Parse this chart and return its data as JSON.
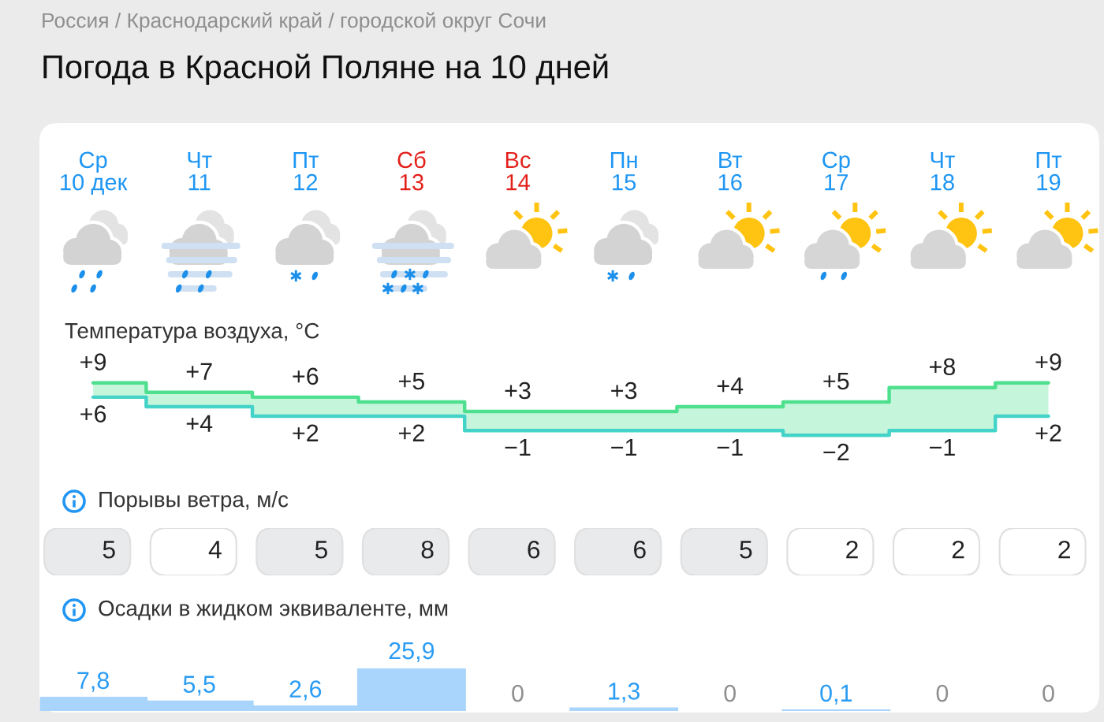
{
  "chart_data": [
    {
      "type": "step",
      "title": "Погода в Красной Поляне на 10 дней",
      "subtitle": "Температура воздуха, °C",
      "annotations": [
        "Россия / Краснодарский край / городской округ Сочи"
      ],
      "categories": [
        "Ср\n10 дек",
        "Чт\n11",
        "Пт\n12",
        "Сб\n13",
        "Вс\n14",
        "Пн\n15",
        "Вт\n16",
        "Ср\n17",
        "Чт\n18",
        "Пт\n19"
      ],
      "series": [
        {
          "color": "#4fe08f",
          "values": [
            9,
            7,
            6,
            5,
            3,
            3,
            4,
            5,
            8,
            9
          ],
          "value_labels": [
            "+9",
            "+7",
            "+6",
            "+5",
            "+3",
            "+3",
            "+4",
            "+5",
            "+8",
            "+9"
          ],
          "lower": [
            6,
            4,
            2,
            2,
            -1,
            -1,
            -1,
            -2,
            -1,
            2
          ],
          "upper": [
            9,
            7,
            6,
            5,
            3,
            3,
            4,
            5,
            8,
            9
          ]
        },
        {
          "color": "#44d3c8",
          "values": [
            6,
            4,
            2,
            2,
            -1,
            -1,
            -1,
            -2,
            -1,
            2
          ],
          "value_labels": [
            "+6",
            "+4",
            "+2",
            "+2",
            "−1",
            "−1",
            "−1",
            "−2",
            "−1",
            "+2"
          ]
        }
      ],
      "tick_labels": "x"
    },
    {
      "type": "other",
      "title": "Порывы ветра, м/с",
      "values": [
        5,
        4,
        5,
        8,
        6,
        6,
        5,
        2,
        2,
        2
      ],
      "colors": [
        "#e9eaec",
        "#ffffff",
        "#e9eaec",
        "#e9eaec",
        "#e9eaec",
        "#e9eaec",
        "#e9eaec",
        "#ffffff",
        "#ffffff",
        "#ffffff"
      ],
      "data_labels": true
    },
    {
      "type": "bar",
      "title": "Осадки в жидком эквиваленте, мм",
      "categories": [
        null,
        null,
        null,
        null,
        null,
        null,
        null,
        null,
        null,
        null
      ],
      "values": [
        7.8,
        5.5,
        2.6,
        25.9,
        0,
        1.3,
        0,
        0.1,
        0,
        0
      ],
      "value_labels": [
        "7,8",
        "5,5",
        "2,6",
        "25,9",
        "0",
        "1,3",
        "0",
        "0,1",
        "0",
        "0"
      ],
      "color": "#a9d4fb"
    }
  ]
}
